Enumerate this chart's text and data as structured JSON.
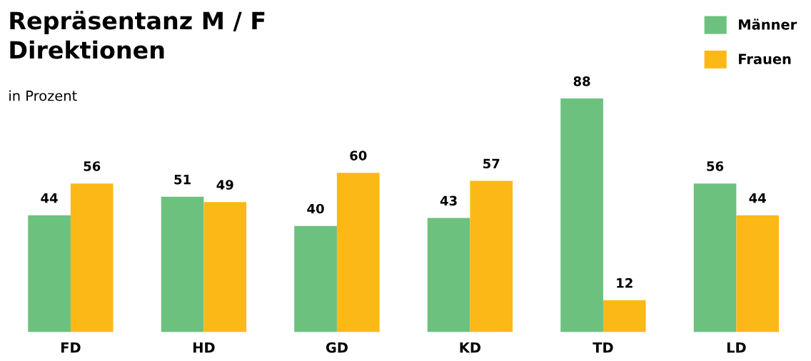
{
  "chart_data": {
    "type": "bar",
    "title": "Repräsentanz M / F\nDirektionen",
    "subtitle": "in Prozent",
    "categories": [
      "FD",
      "HD",
      "GD",
      "KD",
      "TD",
      "LD"
    ],
    "series": [
      {
        "name": "Männer",
        "color": "#6cc17e",
        "values": [
          44,
          51,
          40,
          43,
          88,
          56
        ]
      },
      {
        "name": "Frauen",
        "color": "#fbb817",
        "values": [
          56,
          49,
          60,
          57,
          12,
          44
        ]
      }
    ],
    "data_labels": true,
    "legend": "top right",
    "grid": false
  }
}
